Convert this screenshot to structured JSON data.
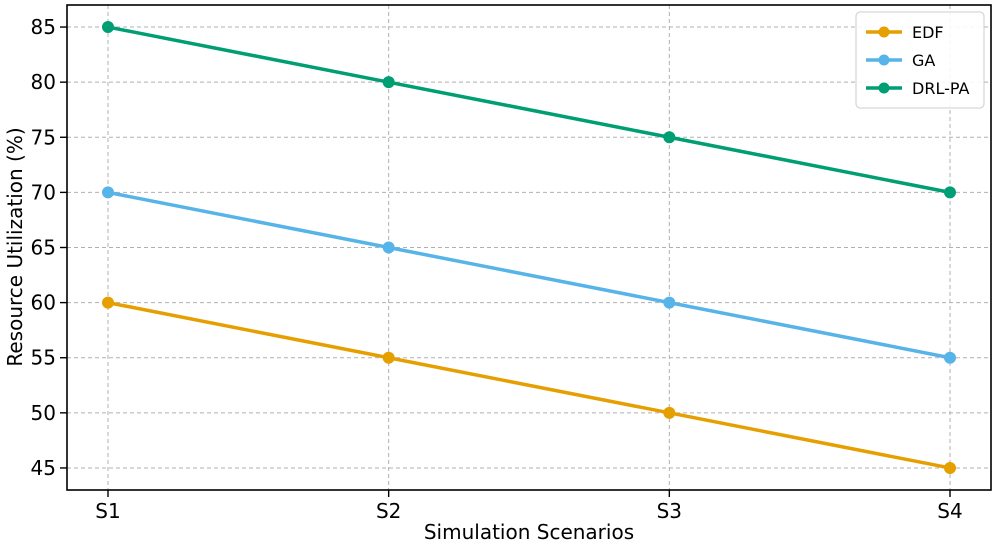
{
  "chart_data": {
    "type": "line",
    "title": "",
    "xlabel": "Simulation Scenarios",
    "ylabel": "Resource Utilization (%)",
    "categories": [
      "S1",
      "S2",
      "S3",
      "S4"
    ],
    "ylim": [
      43,
      87
    ],
    "yticks": [
      45,
      50,
      55,
      60,
      65,
      70,
      75,
      80,
      85
    ],
    "grid": true,
    "legend_position": "top-right",
    "series": [
      {
        "name": "EDF",
        "color": "#E69F00",
        "values": [
          60,
          55,
          50,
          45
        ]
      },
      {
        "name": "GA",
        "color": "#56B4E9",
        "values": [
          70,
          65,
          60,
          55
        ]
      },
      {
        "name": "DRL-PA",
        "color": "#009E73",
        "values": [
          85,
          80,
          75,
          70
        ]
      }
    ]
  }
}
